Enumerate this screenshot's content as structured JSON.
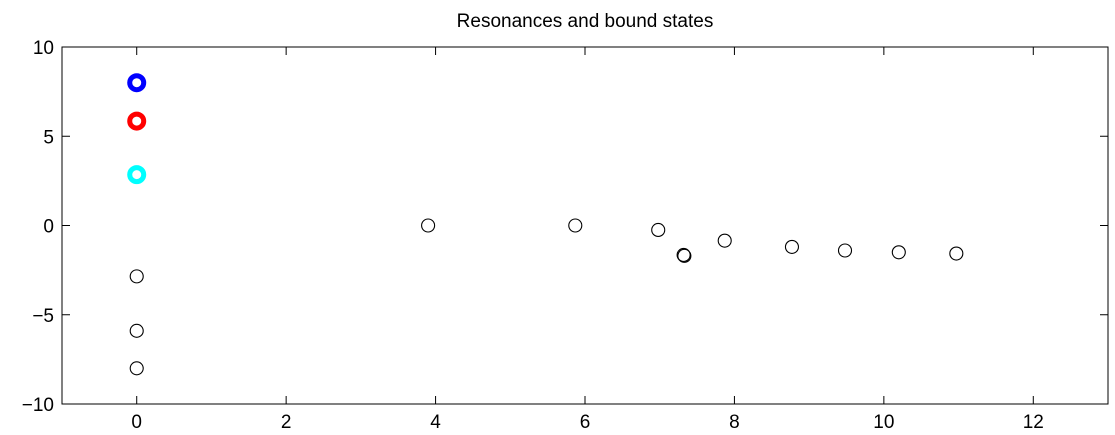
{
  "chart_data": {
    "type": "scatter",
    "title": "Resonances and bound states",
    "xlabel": "",
    "ylabel": "",
    "xlim": [
      -1,
      13
    ],
    "ylim": [
      -10,
      10
    ],
    "xticks": [
      0,
      2,
      4,
      6,
      8,
      10,
      12
    ],
    "yticks": [
      -10,
      -5,
      0,
      5,
      10
    ],
    "xtick_labels": [
      "0",
      "2",
      "4",
      "6",
      "8",
      "10",
      "12"
    ],
    "ytick_labels": [
      "−10",
      "−5",
      "0",
      "5",
      "10"
    ],
    "grid": false,
    "series": [
      {
        "color": "#000000",
        "marker": "open-circle",
        "points": [
          [
            0,
            -2.85
          ],
          [
            0,
            -5.9
          ],
          [
            0,
            -8.0
          ],
          [
            3.9,
            0.0
          ],
          [
            5.87,
            0.0
          ],
          [
            6.98,
            -0.25
          ],
          [
            7.32,
            -1.65
          ],
          [
            7.33,
            -1.7
          ],
          [
            7.87,
            -0.85
          ],
          [
            8.77,
            -1.2
          ],
          [
            9.48,
            -1.4
          ],
          [
            10.2,
            -1.5
          ],
          [
            10.97,
            -1.57
          ]
        ]
      },
      {
        "color": "#0000ff",
        "marker": "thick-circle",
        "points": [
          [
            0,
            8.0
          ]
        ]
      },
      {
        "color": "#ff0000",
        "marker": "thick-circle",
        "points": [
          [
            0,
            5.85
          ]
        ]
      },
      {
        "color": "#00ffff",
        "marker": "thick-circle",
        "points": [
          [
            0,
            2.85
          ]
        ]
      }
    ]
  }
}
